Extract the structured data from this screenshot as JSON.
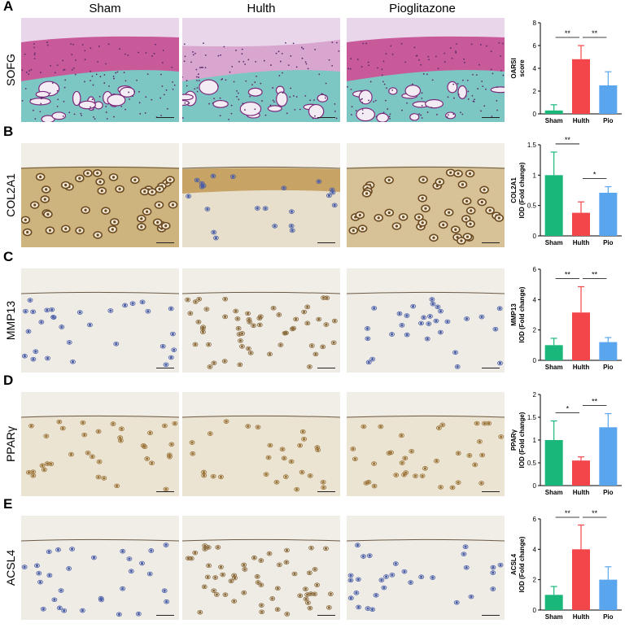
{
  "column_headers": [
    "Sham",
    "Hulth",
    "Pioglitazone"
  ],
  "panels": [
    {
      "letter": "A",
      "stain": "SOFG",
      "tissue": "safranin"
    },
    {
      "letter": "B",
      "stain": "COL2A1",
      "tissue": "ihc_high"
    },
    {
      "letter": "C",
      "stain": "MMP13",
      "tissue": "ihc_low"
    },
    {
      "letter": "D",
      "stain": "PPARγ",
      "tissue": "ihc_mid"
    },
    {
      "letter": "E",
      "stain": "ACSL4",
      "tissue": "ihc_low"
    }
  ],
  "colors": {
    "sham": "#19b87a",
    "hulth": "#f2464a",
    "pio": "#5aa6ee",
    "safranin_pink": "#c85a9a",
    "fastgreen": "#7cc7c4",
    "dab_brown": "#b8914f",
    "hematoxylin": "#4a5ea8"
  },
  "chart_data": [
    {
      "type": "bar",
      "categories": [
        "Sham",
        "Hulth",
        "Pio"
      ],
      "values": [
        0.3,
        4.8,
        2.5
      ],
      "errors": [
        0.5,
        1.2,
        1.2
      ],
      "ylabel_lines": [
        "OARSI",
        "score"
      ],
      "ylim": [
        0,
        8
      ],
      "yticks": [
        0,
        2,
        4,
        6,
        8
      ],
      "comparisons": [
        {
          "from": 0,
          "to": 1,
          "label": "**"
        },
        {
          "from": 1,
          "to": 2,
          "label": "**"
        }
      ]
    },
    {
      "type": "bar",
      "categories": [
        "Sham",
        "Hulth",
        "Pio"
      ],
      "values": [
        1.0,
        0.38,
        0.71
      ],
      "errors": [
        0.38,
        0.18,
        0.1
      ],
      "ylabel_lines": [
        "COL2A1",
        "IOD (Fold change)"
      ],
      "ylim": [
        0,
        1.5
      ],
      "yticks": [
        0,
        0.5,
        1.0,
        1.5
      ],
      "comparisons": [
        {
          "from": 0,
          "to": 1,
          "label": "**"
        },
        {
          "from": 1,
          "to": 2,
          "label": "*"
        }
      ]
    },
    {
      "type": "bar",
      "categories": [
        "Sham",
        "Hulth",
        "Pio"
      ],
      "values": [
        1.0,
        3.15,
        1.2
      ],
      "errors": [
        0.45,
        1.7,
        0.3
      ],
      "ylabel_lines": [
        "MMP13",
        "IOD (Fold change)"
      ],
      "ylim": [
        0,
        6
      ],
      "yticks": [
        0,
        2,
        4,
        6
      ],
      "comparisons": [
        {
          "from": 0,
          "to": 1,
          "label": "**"
        },
        {
          "from": 1,
          "to": 2,
          "label": "**"
        }
      ]
    },
    {
      "type": "bar",
      "categories": [
        "Sham",
        "Hulth",
        "Pio"
      ],
      "values": [
        1.0,
        0.55,
        1.28
      ],
      "errors": [
        0.42,
        0.08,
        0.3
      ],
      "ylabel_lines": [
        "PPARγ",
        "IOD (Fold change)"
      ],
      "ylim": [
        0,
        2.0
      ],
      "yticks": [
        0,
        0.5,
        1.0,
        1.5,
        2.0
      ],
      "comparisons": [
        {
          "from": 0,
          "to": 1,
          "label": "*"
        },
        {
          "from": 1,
          "to": 2,
          "label": "**"
        }
      ]
    },
    {
      "type": "bar",
      "categories": [
        "Sham",
        "Hulth",
        "Pio"
      ],
      "values": [
        1.0,
        4.0,
        2.0
      ],
      "errors": [
        0.55,
        1.6,
        0.85
      ],
      "ylabel_lines": [
        "ACSL4",
        "IOD (Fold change)"
      ],
      "ylim": [
        0,
        6
      ],
      "yticks": [
        0,
        2,
        4,
        6
      ],
      "comparisons": [
        {
          "from": 0,
          "to": 1,
          "label": "**"
        },
        {
          "from": 1,
          "to": 2,
          "label": "**"
        }
      ]
    }
  ]
}
